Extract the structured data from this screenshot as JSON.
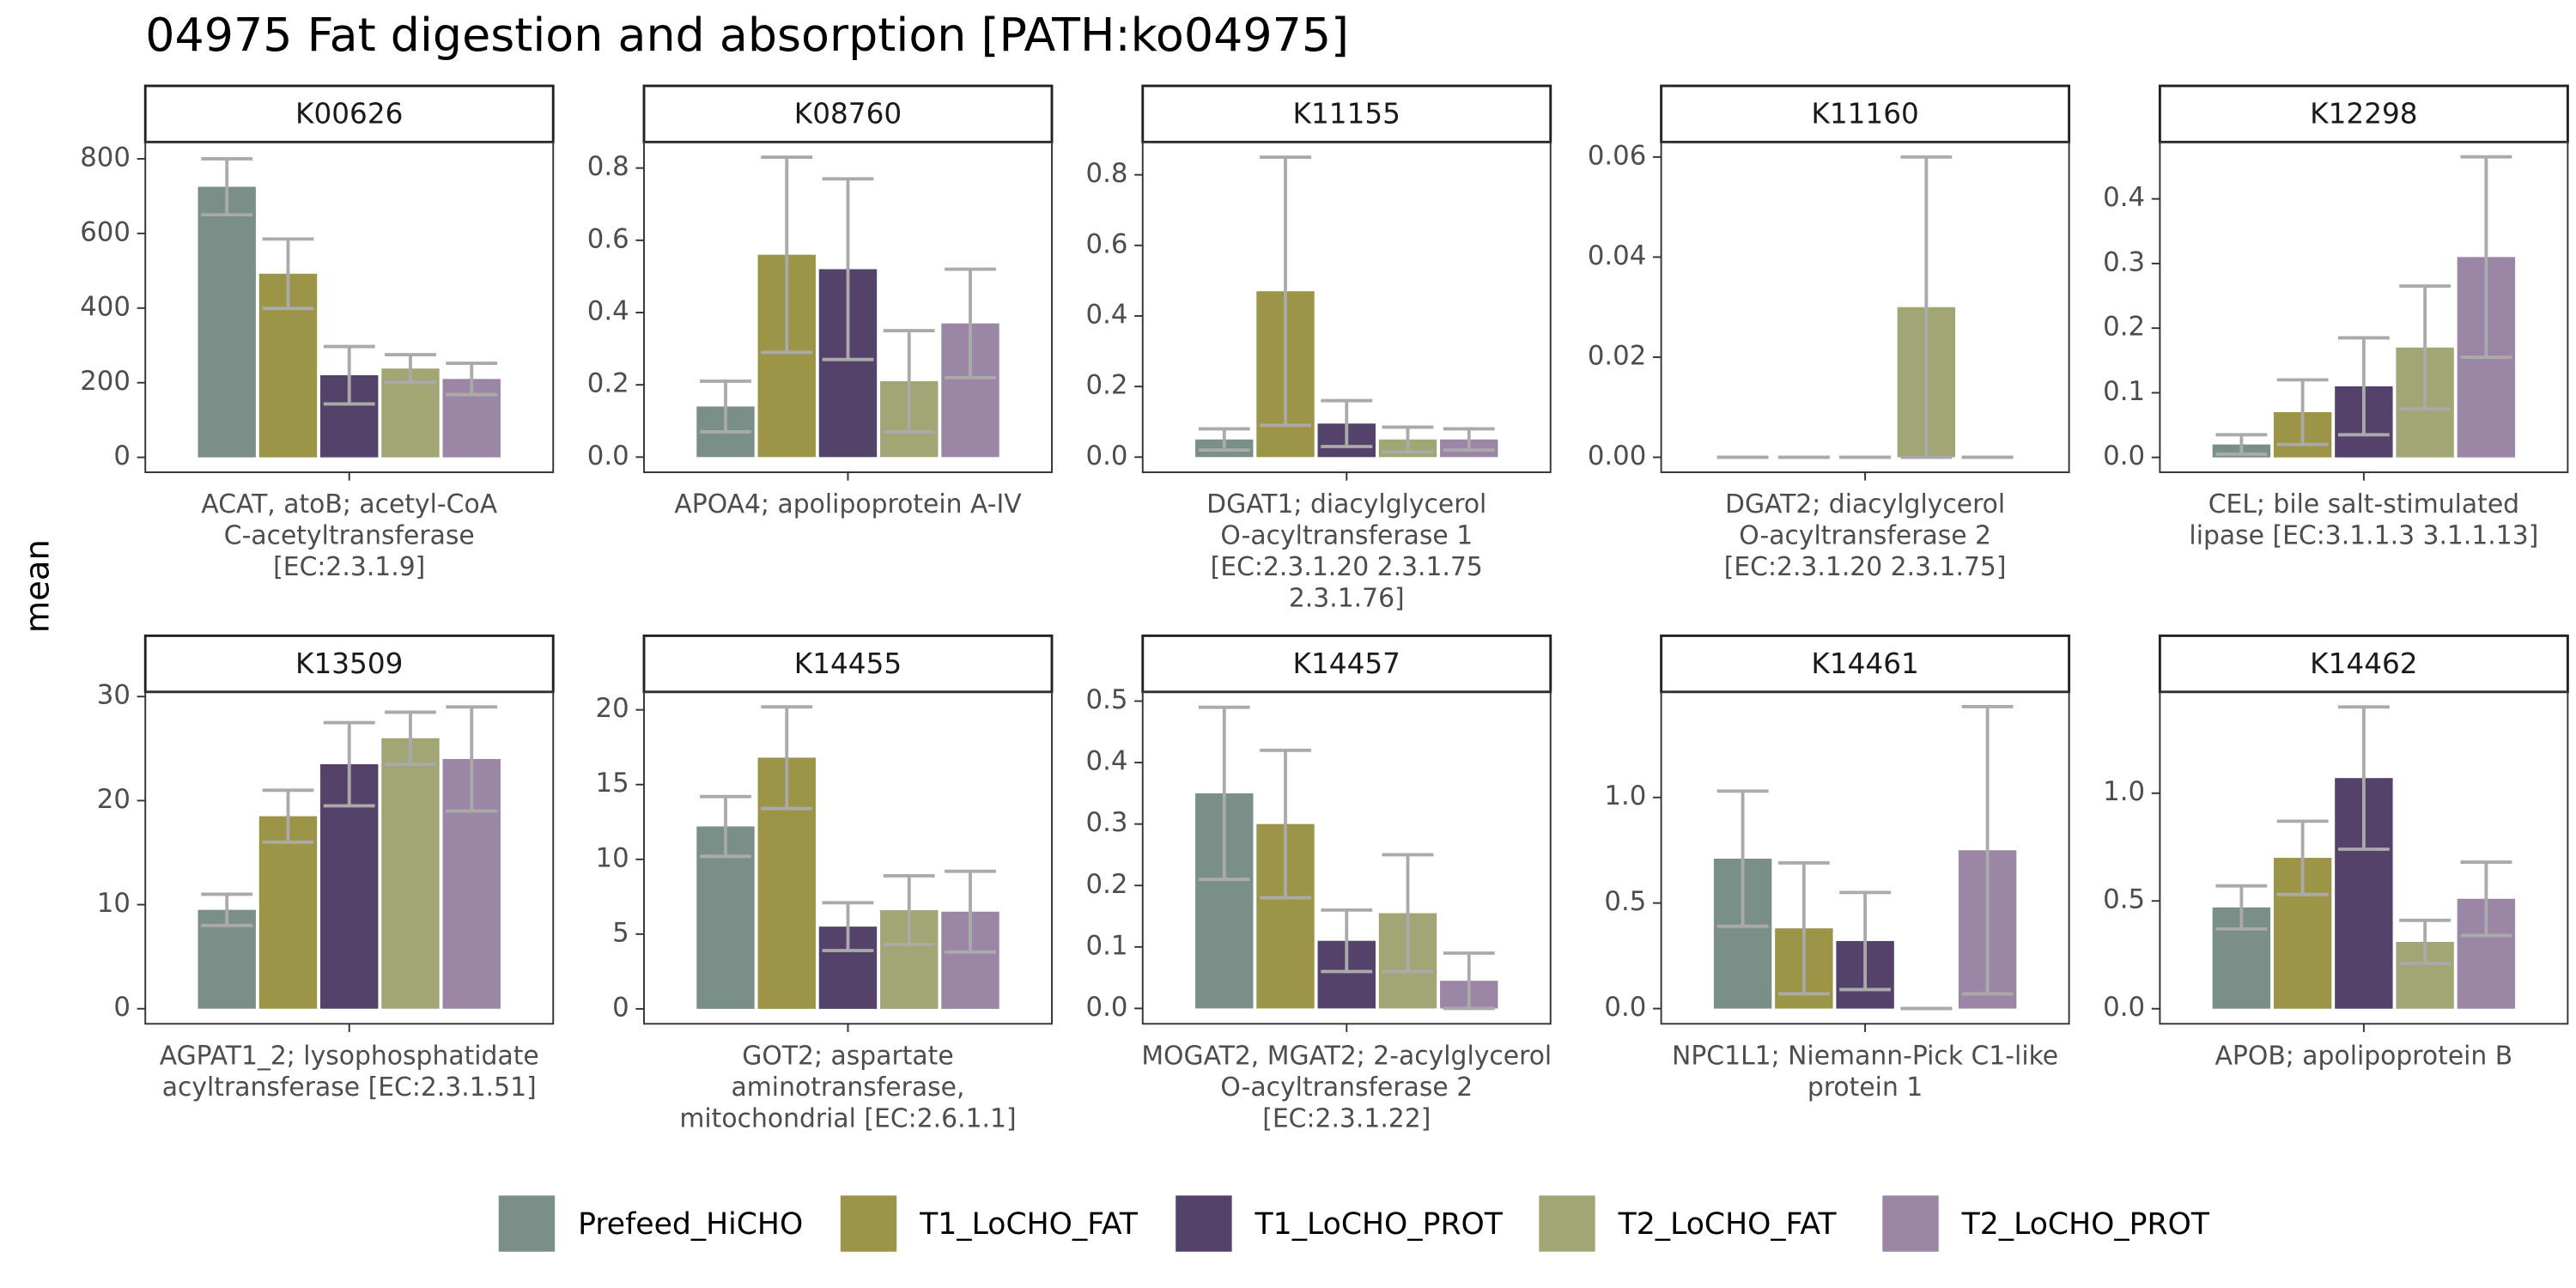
{
  "chart_data": {
    "type": "bar",
    "title": "04975 Fat digestion and absorption [PATH:ko04975]",
    "y_label": "mean",
    "series": [
      {
        "name": "Prefeed_HiCHO",
        "color": "#7a8f87"
      },
      {
        "name": "T1_LoCHO_FAT",
        "color": "#9c9446"
      },
      {
        "name": "T1_LoCHO_PROT",
        "color": "#54426b"
      },
      {
        "name": "T2_LoCHO_FAT",
        "color": "#a2a674"
      },
      {
        "name": "T2_LoCHO_PROT",
        "color": "#9b87a5"
      }
    ],
    "error_color": "#aaaaaa",
    "panels": [
      {
        "label": "K00626",
        "x_label": [
          "ACAT, atoB; acetyl-CoA",
          "C-acetyltransferase",
          "[EC:2.3.1.9]"
        ],
        "values": [
          725,
          492,
          220,
          238,
          210
        ],
        "errors": [
          75,
          93,
          77,
          37,
          42
        ],
        "ylim": [
          -40,
          845
        ],
        "yticks": [
          0,
          200,
          400,
          600,
          800
        ]
      },
      {
        "label": "K08760",
        "x_label": [
          "APOA4; apolipoprotein A-IV"
        ],
        "values": [
          0.14,
          0.56,
          0.52,
          0.21,
          0.37
        ],
        "errors": [
          0.07,
          0.27,
          0.25,
          0.14,
          0.15
        ],
        "ylim": [
          -0.042,
          0.872
        ],
        "yticks": [
          {
            "value": 0,
            "label": "0.0"
          },
          0.2,
          0.4,
          0.6,
          0.8
        ]
      },
      {
        "label": "K11155",
        "x_label": [
          "DGAT1; diacylglycerol",
          "O-acyltransferase 1",
          "[EC:2.3.1.20 2.3.1.75",
          "2.3.1.76]"
        ],
        "values": [
          0.05,
          0.47,
          0.095,
          0.05,
          0.05
        ],
        "errors": [
          0.03,
          0.38,
          0.065,
          0.035,
          0.03
        ],
        "ylim": [
          -0.043,
          0.893
        ],
        "yticks": [
          {
            "value": 0,
            "label": "0.0"
          },
          0.2,
          0.4,
          0.6,
          0.8
        ]
      },
      {
        "label": "K11160",
        "x_label": [
          "DGAT2; diacylglycerol",
          "O-acyltransferase 2",
          "[EC:2.3.1.20 2.3.1.75]"
        ],
        "values": [
          0,
          0,
          0,
          0.03,
          0
        ],
        "errors": [
          0,
          0,
          0,
          0.03,
          0
        ],
        "ylim": [
          -0.003,
          0.063
        ],
        "yticks": [
          {
            "value": 0,
            "label": "0.00"
          },
          0.02,
          0.04,
          0.06
        ]
      },
      {
        "label": "K12298",
        "x_label": [
          "CEL; bile salt-stimulated",
          "lipase [EC:3.1.1.3 3.1.1.13]"
        ],
        "values": [
          0.02,
          0.07,
          0.11,
          0.17,
          0.31
        ],
        "errors": [
          0.015,
          0.05,
          0.075,
          0.095,
          0.155
        ],
        "ylim": [
          -0.023,
          0.488
        ],
        "yticks": [
          {
            "value": 0,
            "label": "0.0"
          },
          0.1,
          0.2,
          0.3,
          0.4
        ]
      },
      {
        "label": "K13509",
        "x_label": [
          "AGPAT1_2; lysophosphatidate",
          "acyltransferase [EC:2.3.1.51]"
        ],
        "values": [
          9.5,
          18.5,
          23.5,
          26,
          24
        ],
        "errors": [
          1.5,
          2.5,
          4,
          2.5,
          5
        ],
        "ylim": [
          -1.45,
          30.45
        ],
        "yticks": [
          0,
          10,
          20,
          30
        ]
      },
      {
        "label": "K14455",
        "x_label": [
          "GOT2; aspartate",
          "aminotransferase,",
          "mitochondrial [EC:2.6.1.1]"
        ],
        "values": [
          12.2,
          16.8,
          5.5,
          6.6,
          6.5
        ],
        "errors": [
          2,
          3.4,
          1.6,
          2.3,
          2.7
        ],
        "ylim": [
          -1.0,
          21.2
        ],
        "yticks": [
          0,
          5,
          10,
          15,
          20
        ]
      },
      {
        "label": "K14457",
        "x_label": [
          "MOGAT2, MGAT2; 2-acylglycerol",
          "O-acyltransferase 2",
          "[EC:2.3.1.22]"
        ],
        "values": [
          0.35,
          0.3,
          0.11,
          0.155,
          0.045
        ],
        "errors": [
          0.14,
          0.12,
          0.05,
          0.095,
          0.045
        ],
        "ylim": [
          -0.025,
          0.515
        ],
        "yticks": [
          {
            "value": 0,
            "label": "0.0"
          },
          0.1,
          0.2,
          0.3,
          0.4,
          0.5
        ]
      },
      {
        "label": "K14461",
        "x_label": [
          "NPC1L1; Niemann-Pick C1-like",
          "protein 1"
        ],
        "values": [
          0.71,
          0.38,
          0.32,
          0,
          0.75
        ],
        "errors": [
          0.32,
          0.31,
          0.23,
          0,
          0.68
        ],
        "ylim": [
          -0.072,
          1.5
        ],
        "yticks": [
          {
            "value": 0,
            "label": "0.0"
          },
          0.5,
          {
            "value": 1,
            "label": "1.0"
          }
        ]
      },
      {
        "label": "K14462",
        "x_label": [
          "APOB; apolipoprotein B"
        ],
        "values": [
          0.47,
          0.7,
          1.07,
          0.31,
          0.51
        ],
        "errors": [
          0.1,
          0.17,
          0.33,
          0.1,
          0.17
        ],
        "ylim": [
          -0.07,
          1.47
        ],
        "yticks": [
          {
            "value": 0,
            "label": "0.0"
          },
          0.5,
          {
            "value": 1,
            "label": "1.0"
          }
        ]
      }
    ]
  }
}
